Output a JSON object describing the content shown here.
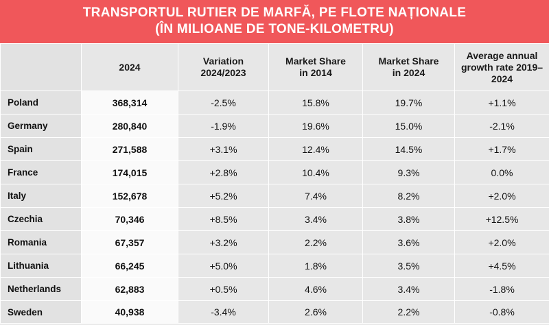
{
  "title": {
    "line1": "TRANSPORTUL RUTIER DE MARFĂ, PE FLOTE NAȚIONALE",
    "line2": "(ÎN MILIOANE DE TONE-KILOMETRU)"
  },
  "columns": [
    "",
    "2024",
    "Variation 2024/2023",
    "Market Share in 2014",
    "Market Share in 2024",
    "Average annual growth rate 2019–2024"
  ],
  "rows": [
    [
      "Poland",
      "368,314",
      "-2.5%",
      "15.8%",
      "19.7%",
      "+1.1%"
    ],
    [
      "Germany",
      "280,840",
      "-1.9%",
      "19.6%",
      "15.0%",
      "-2.1%"
    ],
    [
      "Spain",
      "271,588",
      "+3.1%",
      "12.4%",
      "14.5%",
      "+1.7%"
    ],
    [
      "France",
      "174,015",
      "+2.8%",
      "10.4%",
      "9.3%",
      "0.0%"
    ],
    [
      "Italy",
      "152,678",
      "+5.2%",
      "7.4%",
      "8.2%",
      "+2.0%"
    ],
    [
      "Czechia",
      "70,346",
      "+8.5%",
      "3.4%",
      "3.8%",
      "+12.5%"
    ],
    [
      "Romania",
      "67,357",
      "+3.2%",
      "2.2%",
      "3.6%",
      "+2.0%"
    ],
    [
      "Lithuania",
      "66,245",
      "+5.0%",
      "1.8%",
      "3.5%",
      "+4.5%"
    ],
    [
      "Netherlands",
      "62,883",
      "+0.5%",
      "4.6%",
      "3.4%",
      "-1.8%"
    ],
    [
      "Sweden",
      "40,938",
      "-3.4%",
      "2.6%",
      "2.2%",
      "-0.8%"
    ]
  ],
  "colors": {
    "banner": "#f0575a",
    "header_bg": "#e7e7e7",
    "highlight_column_bg": "#fafafa"
  }
}
